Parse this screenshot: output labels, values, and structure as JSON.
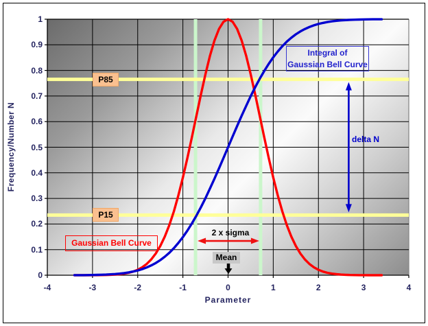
{
  "chart_data": {
    "type": "line",
    "title": "",
    "xlabel": "Parameter",
    "ylabel": "Frequency/Number N",
    "xlim": [
      -4,
      4
    ],
    "ylim": [
      0,
      1
    ],
    "grid": true,
    "x_ticks": [
      "-4",
      "-3",
      "-2",
      "-1",
      "0",
      "1",
      "2",
      "3",
      "4"
    ],
    "y_ticks": [
      "0",
      "0.1",
      "0.2",
      "0.3",
      "0.4",
      "0.5",
      "0.6",
      "0.7",
      "0.8",
      "0.9",
      "1"
    ],
    "series": [
      {
        "name": "Gaussian Bell Curve",
        "color": "#ff0000",
        "x_start": -3.4,
        "x_step": 0.1,
        "values": [
          0.0,
          0.0,
          0.0001,
          0.0001,
          0.0002,
          0.0003,
          0.0005,
          0.0009,
          0.0015,
          0.0024,
          0.0039,
          0.0061,
          0.0094,
          0.0142,
          0.0211,
          0.0307,
          0.0439,
          0.0616,
          0.0847,
          0.1142,
          0.1511,
          0.1959,
          0.2493,
          0.3114,
          0.3812,
          0.4578,
          0.5394,
          0.6234,
          0.7067,
          0.7858,
          0.857,
          0.9169,
          0.9622,
          0.9904,
          1.0,
          0.9904,
          0.9622,
          0.9169,
          0.857,
          0.7858,
          0.7067,
          0.6234,
          0.5394,
          0.4578,
          0.3812,
          0.3114,
          0.2493,
          0.1959,
          0.1511,
          0.1142,
          0.0847,
          0.0616,
          0.0439,
          0.0307,
          0.0211,
          0.0142,
          0.0094,
          0.0061,
          0.0039,
          0.0024,
          0.0015,
          0.0009,
          0.0005,
          0.0003,
          0.0002,
          0.0001,
          0.0001,
          0.0,
          0.0
        ]
      },
      {
        "name": "Integral of Gaussian Bell Curve",
        "color": "#0000d0",
        "x_start": -3.4,
        "x_step": 0.1,
        "values": [
          0.0002,
          0.0003,
          0.0004,
          0.0006,
          0.0009,
          0.0013,
          0.0018,
          0.0025,
          0.0034,
          0.0046,
          0.0062,
          0.0083,
          0.011,
          0.0144,
          0.0186,
          0.0239,
          0.0304,
          0.0383,
          0.0478,
          0.0591,
          0.0724,
          0.0878,
          0.1056,
          0.1259,
          0.1488,
          0.1742,
          0.2023,
          0.233,
          0.266,
          0.3012,
          0.3385,
          0.3773,
          0.4175,
          0.4585,
          0.5,
          0.5415,
          0.5825,
          0.6227,
          0.6615,
          0.6988,
          0.734,
          0.767,
          0.7977,
          0.8258,
          0.8512,
          0.8741,
          0.8944,
          0.9122,
          0.9276,
          0.9409,
          0.9522,
          0.9617,
          0.9696,
          0.9761,
          0.9814,
          0.9856,
          0.989,
          0.9917,
          0.9938,
          0.9954,
          0.9966,
          0.9975,
          0.9982,
          0.9987,
          0.9991,
          0.9994,
          0.9996,
          0.9997,
          0.9998
        ]
      }
    ],
    "reference_lines_h": [
      {
        "label": "P85",
        "value": 0.765,
        "color": "#ffff99"
      },
      {
        "label": "P15",
        "value": 0.235,
        "color": "#ffff99"
      }
    ],
    "reference_lines_v": [
      {
        "label": "mean - sigma",
        "value": -0.72,
        "color": "#cbf6cb"
      },
      {
        "label": "mean + sigma",
        "value": 0.72,
        "color": "#cbf6cb"
      }
    ],
    "annotations": {
      "p85": "P85",
      "p15": "P15",
      "gauss_label": "Gaussian Bell Curve",
      "integral_label": [
        "Integral of",
        "Gaussian Bell Curve"
      ],
      "sigma_label": "2 x sigma",
      "mean_label": "Mean",
      "delta_label": "delta N",
      "arrows": [
        {
          "name": "delta-n-arrow",
          "type": "v-double",
          "x": 2.67,
          "y1": 0.235,
          "y2": 0.765,
          "color": "#0000cc"
        },
        {
          "name": "sigma-arrow",
          "type": "h-double",
          "y": 0.134,
          "x1": -0.72,
          "x2": 0.72,
          "color": "#ee1111"
        },
        {
          "name": "mean-arrow",
          "type": "down",
          "x": 0,
          "y1": 0.046,
          "y2": 0.005,
          "color": "#000000"
        }
      ]
    },
    "colors": {
      "curve_red": "#ff0000",
      "curve_blue": "#0000d0",
      "band_yellow": "#ffff99",
      "band_green": "#cbf6cb",
      "gridline": "#000000",
      "plot_right_wall": "#888888",
      "tick_text": "#23235f",
      "chip_bg": "#fac090",
      "mean_chip_bg": "#c8c8c8",
      "bg_dark": "#6b6b6b",
      "bg_light": "#fbfbfb"
    }
  }
}
